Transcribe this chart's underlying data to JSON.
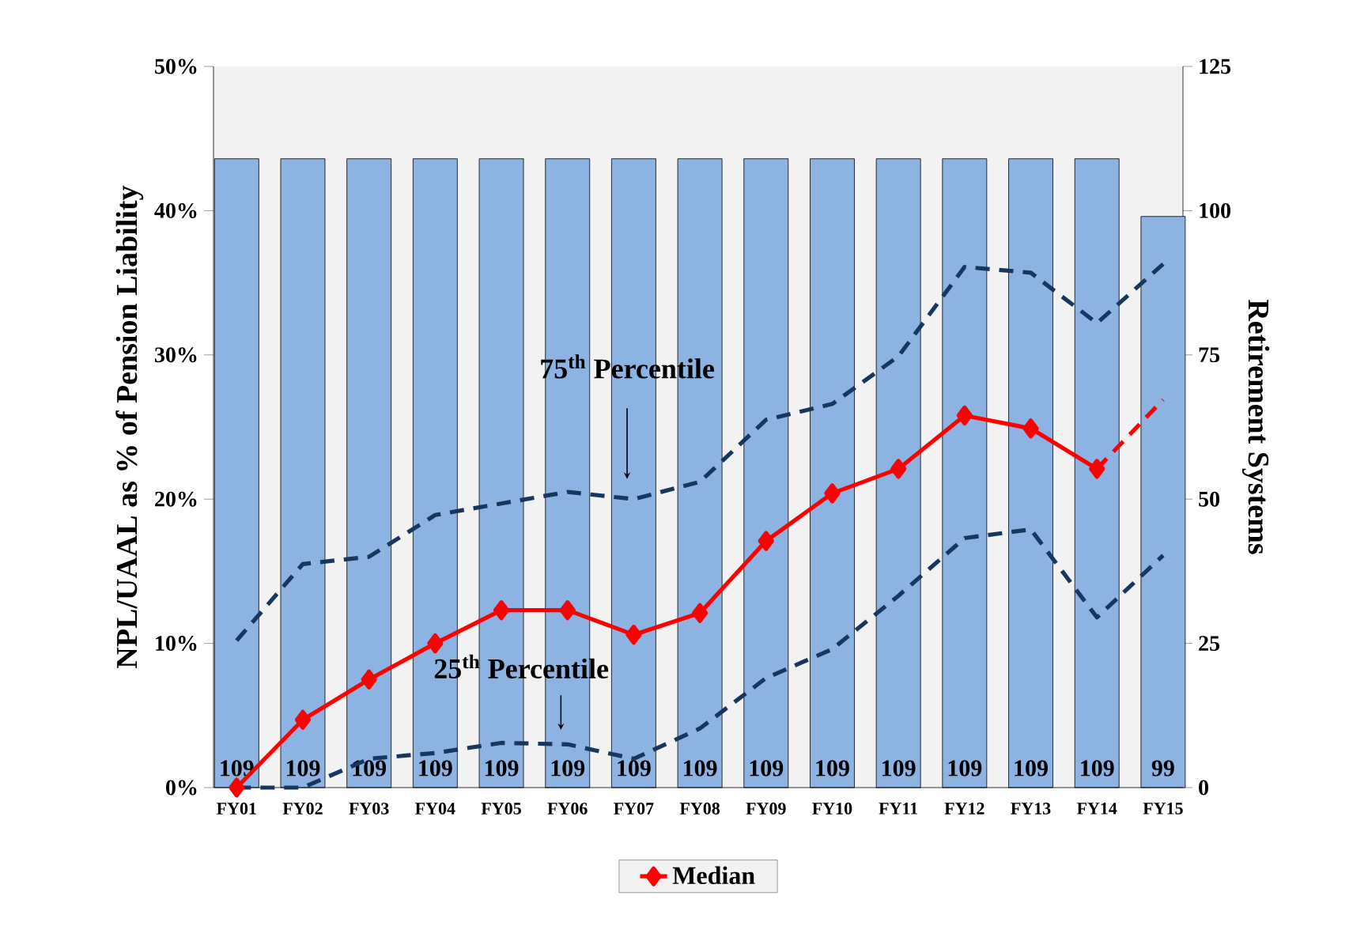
{
  "chart_data": {
    "type": "line",
    "ylabel": "NPL/UAAL as % of Pension Liability",
    "y2label": "Retirement Systems",
    "categories": [
      "FY01",
      "FY02",
      "FY03",
      "FY04",
      "FY05",
      "FY06",
      "FY07",
      "FY08",
      "FY09",
      "FY10",
      "FY11",
      "FY12",
      "FY13",
      "FY14",
      "FY15"
    ],
    "series": [
      {
        "type": "bar",
        "axis": "y2",
        "color": "#8db3e2",
        "values": [
          109,
          109,
          109,
          109,
          109,
          109,
          109,
          109,
          109,
          109,
          109,
          109,
          109,
          109,
          99
        ],
        "value_labels": [
          "109",
          "109",
          "109",
          "109",
          "109",
          "109",
          "109",
          "109",
          "109",
          "109",
          "109",
          "109",
          "109",
          "109",
          "99"
        ]
      },
      {
        "color": "#17375e",
        "line_style": "dashed",
        "marker": "none",
        "values": [
          10.2,
          15.5,
          16.0,
          18.9,
          19.7,
          20.5,
          20.0,
          21.2,
          25.5,
          26.6,
          29.9,
          36.1,
          35.7,
          32.2,
          36.3
        ]
      },
      {
        "color": "#17375e",
        "line_style": "dashed",
        "marker": "none",
        "values": [
          0.0,
          0.0,
          2.0,
          2.4,
          3.1,
          3.0,
          2.0,
          4.1,
          7.6,
          9.6,
          13.3,
          17.3,
          17.9,
          11.8,
          16.1
        ]
      },
      {
        "name": "Median",
        "color": "#ff0000",
        "line_style": "solid",
        "marker": "diamond",
        "values": [
          0.0,
          4.7,
          7.5,
          10.0,
          12.3,
          12.3,
          10.6,
          12.1,
          17.1,
          20.4,
          22.1,
          25.8,
          24.9,
          22.1,
          null
        ]
      },
      {
        "color": "#ff0000",
        "line_style": "dashed",
        "values": [
          null,
          null,
          null,
          null,
          null,
          null,
          null,
          null,
          null,
          null,
          null,
          null,
          null,
          22.1,
          26.9
        ]
      }
    ],
    "ylim": [
      0,
      50
    ],
    "yticks": [
      {
        "value": 0,
        "label": "0%"
      },
      {
        "value": 10,
        "label": "10%"
      },
      {
        "value": 20,
        "label": "20%"
      },
      {
        "value": 30,
        "label": "30%"
      },
      {
        "value": 40,
        "label": "40%"
      },
      {
        "value": 50,
        "label": "50%"
      }
    ],
    "y2lim": [
      0,
      125
    ],
    "y2ticks": [
      0,
      25,
      50,
      75,
      100,
      125
    ],
    "annotations": [
      "75$^{th}$ Percentile",
      "25$^{th}$ Percentile"
    ],
    "legend": "bottom",
    "grid": false
  }
}
